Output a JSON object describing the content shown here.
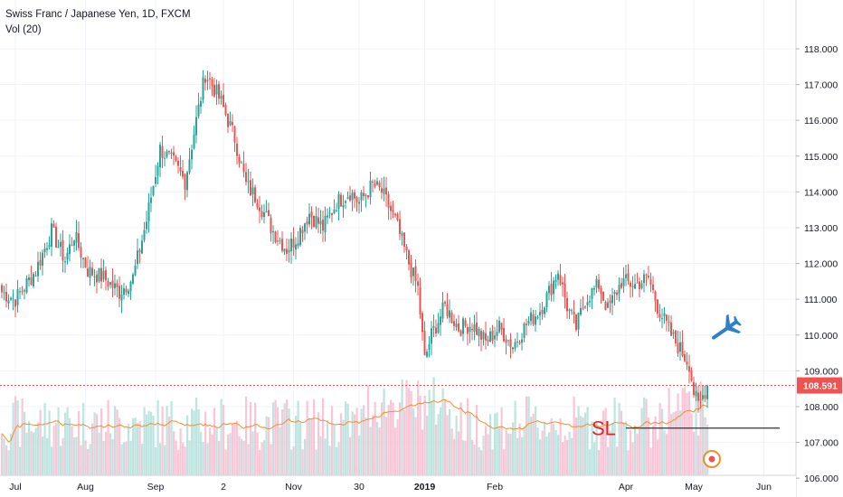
{
  "legend": {
    "title": "Swiss Franc / Japanese Yen, 1D, FXCM",
    "volume": "Vol (20)"
  },
  "chart_data": {
    "type": "candlestick",
    "symbol": "Swiss Franc / Japanese Yen",
    "interval": "1D",
    "source": "FXCM",
    "ylim": [
      105.6,
      118.4
    ],
    "y_ticks": [
      "106.000",
      "107.000",
      "108.000",
      "109.000",
      "110.000",
      "111.000",
      "112.000",
      "113.000",
      "114.000",
      "115.000",
      "116.000",
      "117.000",
      "118.000"
    ],
    "x_ticks": [
      {
        "label": "Jul",
        "day": 6
      },
      {
        "label": "Aug",
        "day": 37
      },
      {
        "label": "Sep",
        "day": 68
      },
      {
        "label": "2",
        "day": 98
      },
      {
        "label": "Nov",
        "day": 129
      },
      {
        "label": "30",
        "day": 158
      },
      {
        "label": "2019",
        "day": 187
      },
      {
        "label": "Feb",
        "day": 218
      },
      {
        "label": "Apr",
        "day": 276
      },
      {
        "label": "May",
        "day": 306
      },
      {
        "label": "Jun",
        "day": 337
      }
    ],
    "close_anchors": [
      [
        0,
        111.2
      ],
      [
        6,
        111.0
      ],
      [
        15,
        111.8
      ],
      [
        22,
        112.9
      ],
      [
        28,
        112.1
      ],
      [
        32,
        112.8
      ],
      [
        38,
        111.8
      ],
      [
        45,
        111.6
      ],
      [
        52,
        111.2
      ],
      [
        58,
        111.6
      ],
      [
        64,
        113.2
      ],
      [
        70,
        115.2
      ],
      [
        76,
        114.8
      ],
      [
        81,
        114.3
      ],
      [
        86,
        116.0
      ],
      [
        90,
        117.3
      ],
      [
        93,
        117.0
      ],
      [
        97,
        116.5
      ],
      [
        103,
        115.5
      ],
      [
        108,
        114.2
      ],
      [
        113,
        113.8
      ],
      [
        120,
        112.9
      ],
      [
        126,
        112.4
      ],
      [
        130,
        112.7
      ],
      [
        136,
        113.4
      ],
      [
        142,
        113.0
      ],
      [
        148,
        113.7
      ],
      [
        154,
        114.0
      ],
      [
        158,
        113.7
      ],
      [
        164,
        114.2
      ],
      [
        168,
        114.0
      ],
      [
        174,
        113.2
      ],
      [
        180,
        112.0
      ],
      [
        184,
        111.3
      ],
      [
        187,
        109.3
      ],
      [
        190,
        110.0
      ],
      [
        196,
        110.8
      ],
      [
        202,
        110.2
      ],
      [
        208,
        110.3
      ],
      [
        214,
        109.8
      ],
      [
        220,
        110.2
      ],
      [
        226,
        109.7
      ],
      [
        232,
        110.3
      ],
      [
        238,
        110.7
      ],
      [
        242,
        111.2
      ],
      [
        246,
        111.8
      ],
      [
        250,
        110.8
      ],
      [
        254,
        110.2
      ],
      [
        258,
        111.0
      ],
      [
        264,
        111.4
      ],
      [
        268,
        110.7
      ],
      [
        274,
        111.5
      ],
      [
        280,
        111.4
      ],
      [
        286,
        111.6
      ],
      [
        290,
        110.8
      ],
      [
        296,
        110.0
      ],
      [
        300,
        109.6
      ],
      [
        304,
        109.2
      ],
      [
        306,
        108.4
      ],
      [
        308,
        108.0
      ],
      [
        310,
        108.3
      ],
      [
        312,
        108.6
      ]
    ],
    "last_price": "108.591",
    "last_price_value": 108.591,
    "volume_ma_period": 20,
    "annotations": {
      "stop_loss_label": "SL",
      "stop_loss_level": 107.4,
      "airplane_icon": "airplane-icon",
      "record_icon": "record-icon"
    },
    "colors": {
      "up": "#26a69a",
      "down": "#ef5350",
      "volume_up": "#b2dfdb",
      "volume_down": "#f8bbd0",
      "volume_ma": "#f28e2c",
      "last_price_line": "#ef5350",
      "sl": "#d9262b",
      "airplane": "#2f80c9",
      "record": "#f28e2c"
    }
  }
}
